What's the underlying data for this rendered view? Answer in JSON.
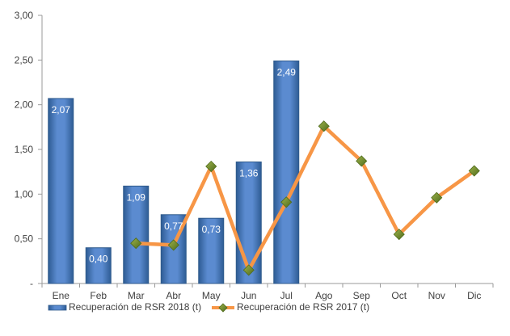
{
  "chart_data": {
    "type": "bar",
    "categories": [
      "Ene",
      "Feb",
      "Mar",
      "Abr",
      "May",
      "Jun",
      "Jul",
      "Ago",
      "Sep",
      "Oct",
      "Nov",
      "Dic"
    ],
    "yticks": [
      "-",
      "0,50",
      "1,00",
      "1,50",
      "2,00",
      "2,50",
      "3,00"
    ],
    "ylim": [
      0,
      3
    ],
    "grid": false,
    "legend_position": "bottom",
    "series": [
      {
        "name": "Recuperación de RSR 2018 (t)",
        "kind": "bar",
        "color": "#4F81BD",
        "values": [
          2.07,
          0.4,
          1.09,
          0.77,
          0.73,
          1.36,
          2.49,
          null,
          null,
          null,
          null,
          null
        ],
        "labels": [
          "2,07",
          "0,40",
          "1,09",
          "0,77",
          "0,73",
          "1,36",
          "2,49",
          null,
          null,
          null,
          null,
          null
        ]
      },
      {
        "name": "Recuperación de RSR 2017 (t)",
        "kind": "line",
        "color": "#F79646",
        "marker_color": "#6B8E23",
        "values": [
          null,
          null,
          0.45,
          0.43,
          1.31,
          0.15,
          0.91,
          1.76,
          1.37,
          0.55,
          0.96,
          1.26
        ]
      }
    ]
  }
}
